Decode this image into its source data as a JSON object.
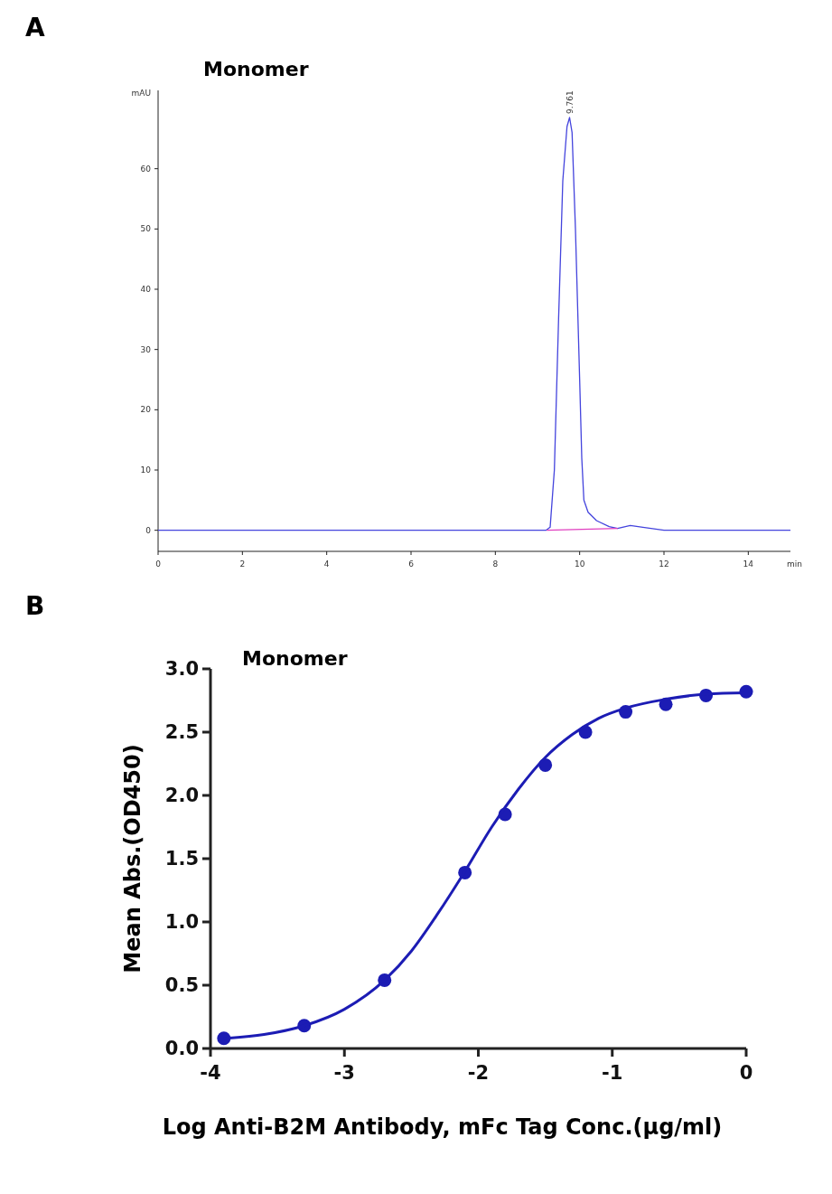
{
  "chart_data": [
    {
      "type": "line",
      "title": "Monomer",
      "xlabel": "min",
      "ylabel": "mAU",
      "annotations": [
        "A",
        {
          "text": "9.761",
          "x": 9.761,
          "y": 68.5
        }
      ],
      "xlim": [
        0,
        15
      ],
      "ylim": [
        -3.5,
        73
      ],
      "xticks": [
        0,
        2,
        4,
        6,
        8,
        10,
        12,
        14
      ],
      "yticks": [
        0,
        10,
        20,
        30,
        40,
        50,
        60
      ],
      "grid": false,
      "marker": "none",
      "line_style": "solid",
      "series": [
        {
          "color": "#4444dd",
          "x": [
            0,
            9.0,
            9.2,
            9.3,
            9.4,
            9.5,
            9.6,
            9.7,
            9.761,
            9.82,
            9.9,
            10.0,
            10.05,
            10.1,
            10.2,
            10.4,
            10.7,
            10.9,
            11.2,
            11.5,
            12,
            15
          ],
          "values": [
            0,
            0,
            0,
            0.5,
            10,
            35,
            58,
            67,
            68.5,
            66,
            50,
            25,
            12,
            5,
            3,
            1.6,
            0.6,
            0.3,
            0.8,
            0.5,
            0,
            0
          ]
        },
        {
          "color": "#e040c0",
          "x": [
            9.22,
            10.9
          ],
          "values": [
            0,
            0.3
          ]
        }
      ]
    },
    {
      "type": "scatter",
      "title": "Monomer",
      "xlabel": "Log Anti-B2M Antibody, mFc Tag Conc.(µg/ml)",
      "ylabel": "Mean Abs.(OD450)",
      "annotations": [
        "B"
      ],
      "xlim": [
        -4,
        0
      ],
      "ylim": [
        0,
        3
      ],
      "xticks": [
        -4,
        -3,
        -2,
        -1,
        0
      ],
      "yticks": [
        {
          "value": 0,
          "label": "0.0"
        },
        {
          "value": 0.5,
          "label": "0.5"
        },
        {
          "value": 1,
          "label": "1.0"
        },
        {
          "value": 1.5,
          "label": "1.5"
        },
        {
          "value": 2,
          "label": "2.0"
        },
        {
          "value": 2.5,
          "label": "2.5"
        },
        {
          "value": 3,
          "label": "3.0"
        }
      ],
      "grid": false,
      "marker": "circle",
      "series": [
        {
          "color": "#1c1cb4",
          "x": [
            -3.9,
            -3.3,
            -2.7,
            -2.1,
            -1.8,
            -1.5,
            -1.2,
            -0.9,
            -0.6,
            -0.3,
            0
          ],
          "values": [
            0.08,
            0.18,
            0.54,
            1.39,
            1.85,
            2.24,
            2.5,
            2.66,
            2.72,
            2.79,
            2.82
          ]
        },
        {
          "type": "line",
          "marker": "none",
          "color": "#1c1cb4",
          "x": [
            -3.9,
            -3.6,
            -3.3,
            -3.0,
            -2.7,
            -2.5,
            -2.3,
            -2.1,
            -1.9,
            -1.7,
            -1.5,
            -1.3,
            -1.1,
            -0.9,
            -0.6,
            -0.3,
            0
          ],
          "values": [
            0.08,
            0.11,
            0.18,
            0.31,
            0.54,
            0.77,
            1.07,
            1.4,
            1.75,
            2.05,
            2.3,
            2.48,
            2.61,
            2.69,
            2.76,
            2.8,
            2.81
          ]
        }
      ]
    }
  ]
}
